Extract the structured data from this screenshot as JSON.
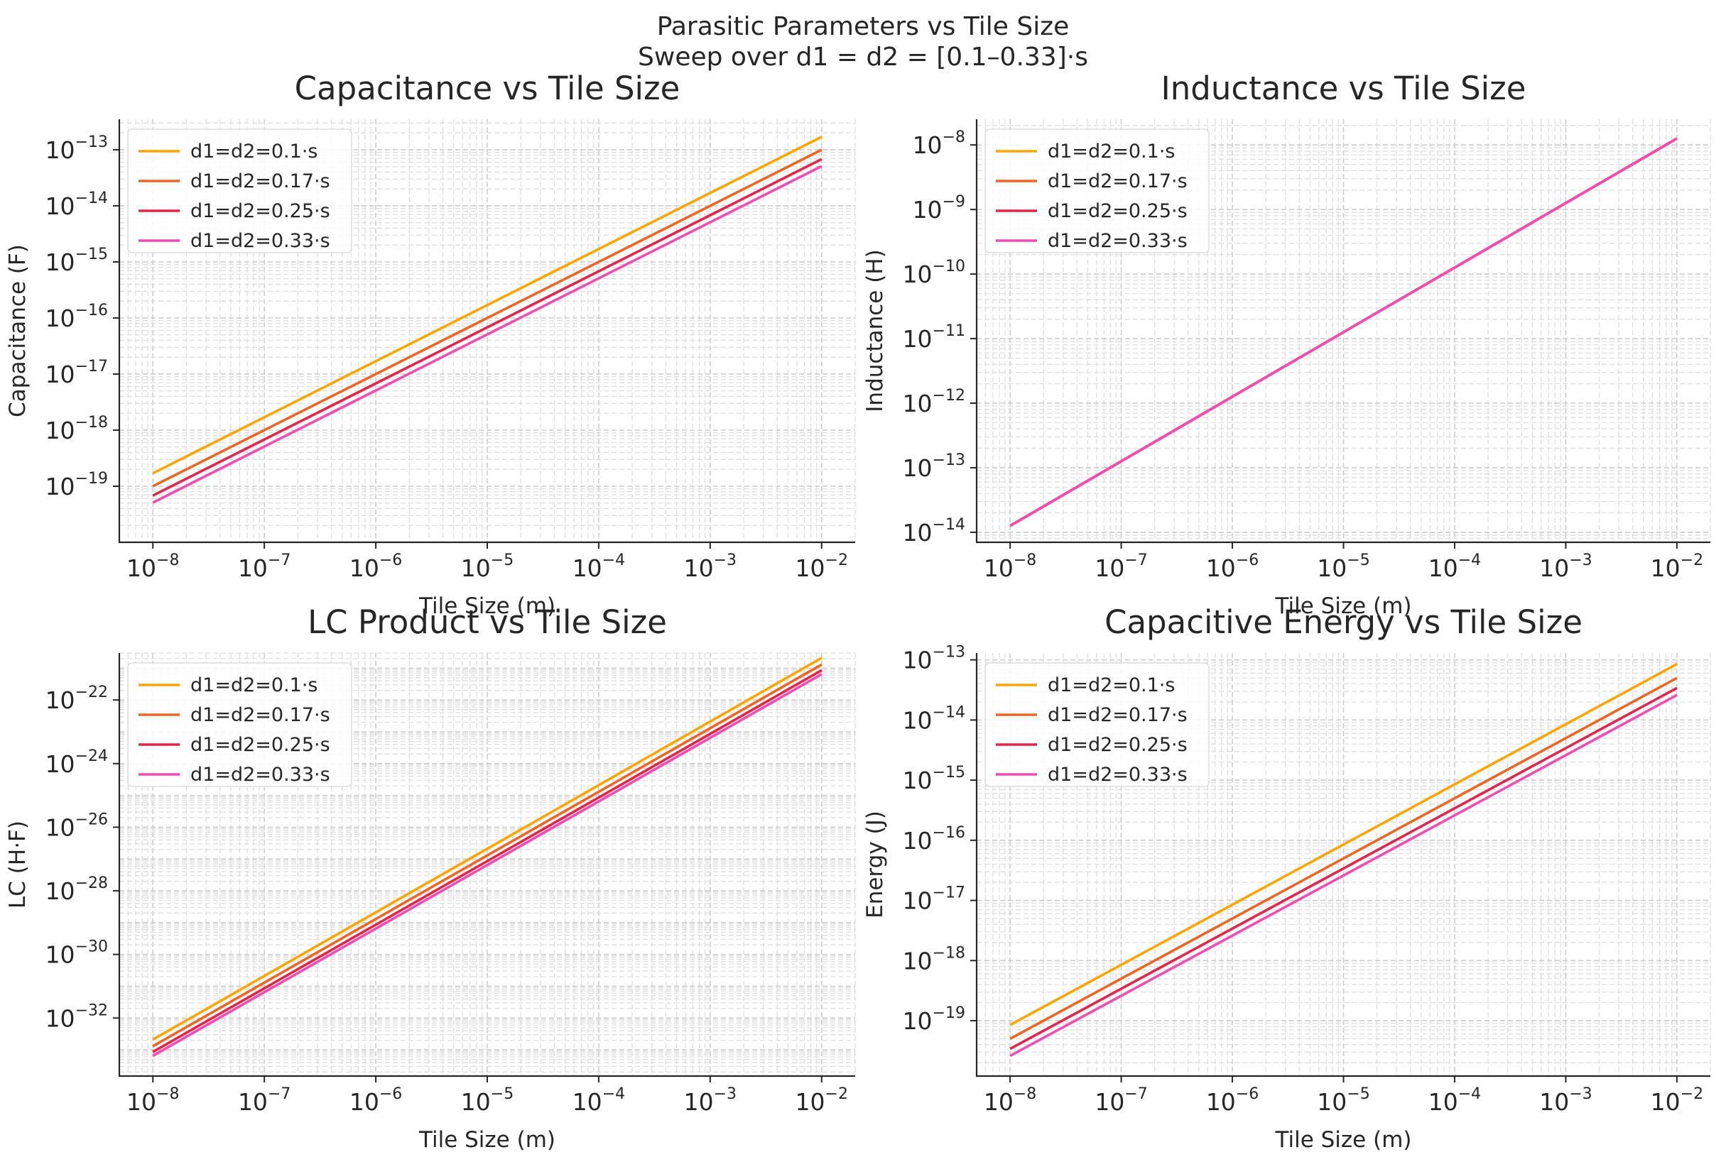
{
  "figure": {
    "title_line1": "Parasitic Parameters vs Tile Size",
    "title_line2": "Sweep over d1 = d2 = [0.1–0.33]·s"
  },
  "colors": {
    "series": [
      "#FFA500",
      "#EE6624",
      "#E5244A",
      "#F24CB4"
    ]
  },
  "chart_data": [
    {
      "type": "line",
      "title": "Capacitance vs Tile Size",
      "xlabel": "Tile Size (m)",
      "ylabel": "Capacitance (F)",
      "xscale": "log",
      "yscale": "log",
      "xlim": [
        5e-09,
        0.02
      ],
      "ylim": [
        1e-20,
        3.5e-13
      ],
      "xticks": [
        -8,
        -7,
        -6,
        -5,
        -4,
        -3,
        -2
      ],
      "yticks": [
        -19,
        -18,
        -17,
        -16,
        -15,
        -14,
        -13
      ],
      "grid": true,
      "legend": "upper left",
      "series": [
        {
          "name": "d1=d2=0.1·s",
          "x": [
            1e-08,
            0.01
          ],
          "y": [
            1.7e-19,
            1.7e-13
          ]
        },
        {
          "name": "d1=d2=0.17·s",
          "x": [
            1e-08,
            0.01
          ],
          "y": [
            1e-19,
            1e-13
          ]
        },
        {
          "name": "d1=d2=0.25·s",
          "x": [
            1e-08,
            0.01
          ],
          "y": [
            6.8e-20,
            6.8e-14
          ]
        },
        {
          "name": "d1=d2=0.33·s",
          "x": [
            1e-08,
            0.01
          ],
          "y": [
            5.1e-20,
            5.1e-14
          ]
        }
      ]
    },
    {
      "type": "line",
      "title": "Inductance vs Tile Size",
      "xlabel": "Tile Size (m)",
      "ylabel": "Inductance (H)",
      "xscale": "log",
      "yscale": "log",
      "xlim": [
        5e-09,
        0.02
      ],
      "ylim": [
        7e-15,
        2.5e-08
      ],
      "xticks": [
        -8,
        -7,
        -6,
        -5,
        -4,
        -3,
        -2
      ],
      "yticks": [
        -14,
        -13,
        -12,
        -11,
        -10,
        -9,
        -8
      ],
      "grid": true,
      "legend": "upper left",
      "series": [
        {
          "name": "d1=d2=0.1·s",
          "x": [
            1e-08,
            0.01
          ],
          "y": [
            1.26e-14,
            1.26e-08
          ]
        },
        {
          "name": "d1=d2=0.17·s",
          "x": [
            1e-08,
            0.01
          ],
          "y": [
            1.26e-14,
            1.26e-08
          ]
        },
        {
          "name": "d1=d2=0.25·s",
          "x": [
            1e-08,
            0.01
          ],
          "y": [
            1.26e-14,
            1.26e-08
          ]
        },
        {
          "name": "d1=d2=0.33·s",
          "x": [
            1e-08,
            0.01
          ],
          "y": [
            1.26e-14,
            1.26e-08
          ]
        }
      ]
    },
    {
      "type": "line",
      "title": "LC Product vs Tile Size",
      "xlabel": "Tile Size (m)",
      "ylabel": "LC (H·F)",
      "xscale": "log",
      "yscale": "log",
      "xlim": [
        5e-09,
        0.02
      ],
      "ylim": [
        1.5e-34,
        3e-21
      ],
      "xticks": [
        -8,
        -7,
        -6,
        -5,
        -4,
        -3,
        -2
      ],
      "yticks": [
        -32,
        -30,
        -28,
        -26,
        -24,
        -22
      ],
      "grid": true,
      "legend": "upper left",
      "series": [
        {
          "name": "d1=d2=0.1·s",
          "x": [
            1e-08,
            0.01
          ],
          "y": [
            2.1e-33,
            2.1e-21
          ]
        },
        {
          "name": "d1=d2=0.17·s",
          "x": [
            1e-08,
            0.01
          ],
          "y": [
            1.3e-33,
            1.3e-21
          ]
        },
        {
          "name": "d1=d2=0.25·s",
          "x": [
            1e-08,
            0.01
          ],
          "y": [
            8.6e-34,
            8.6e-22
          ]
        },
        {
          "name": "d1=d2=0.33·s",
          "x": [
            1e-08,
            0.01
          ],
          "y": [
            6.5e-34,
            6.5e-22
          ]
        }
      ]
    },
    {
      "type": "line",
      "title": "Capacitive Energy vs Tile Size",
      "xlabel": "Tile Size (m)",
      "ylabel": "Energy (J)",
      "xscale": "log",
      "yscale": "log",
      "xlim": [
        5e-09,
        0.02
      ],
      "ylim": [
        1.2e-20,
        1.3e-13
      ],
      "xticks": [
        -8,
        -7,
        -6,
        -5,
        -4,
        -3,
        -2
      ],
      "yticks": [
        -19,
        -18,
        -17,
        -16,
        -15,
        -14,
        -13
      ],
      "grid": true,
      "legend": "upper left",
      "series": [
        {
          "name": "d1=d2=0.1·s",
          "x": [
            1e-08,
            0.01
          ],
          "y": [
            8.5e-20,
            8.5e-14
          ]
        },
        {
          "name": "d1=d2=0.17·s",
          "x": [
            1e-08,
            0.01
          ],
          "y": [
            5e-20,
            5e-14
          ]
        },
        {
          "name": "d1=d2=0.25·s",
          "x": [
            1e-08,
            0.01
          ],
          "y": [
            3.4e-20,
            3.4e-14
          ]
        },
        {
          "name": "d1=d2=0.33·s",
          "x": [
            1e-08,
            0.01
          ],
          "y": [
            2.6e-20,
            2.6e-14
          ]
        }
      ]
    }
  ]
}
